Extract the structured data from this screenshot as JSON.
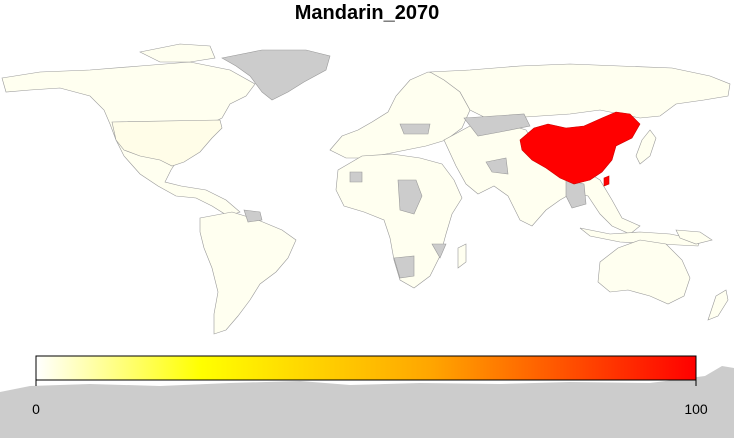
{
  "title": "Mandarin_2070",
  "legend": {
    "min_label": "0",
    "max_label": "100"
  },
  "colors": {
    "background": "#ffffff",
    "no_data": "#cccccc",
    "near_zero": "#fffff0",
    "low_usa": "#fffde8",
    "china": "#ff0000",
    "border": "#9a9a9a",
    "scale": [
      "#ffffff",
      "#ffff00",
      "#ffa500",
      "#ff0000"
    ]
  },
  "regions": [
    {
      "name": "China",
      "value": 100
    },
    {
      "name": "United States",
      "value": 1
    },
    {
      "name": "Greenland",
      "value": null
    },
    {
      "name": "Mongolia",
      "value": null
    },
    {
      "name": "Antarctica",
      "value": null
    }
  ]
}
